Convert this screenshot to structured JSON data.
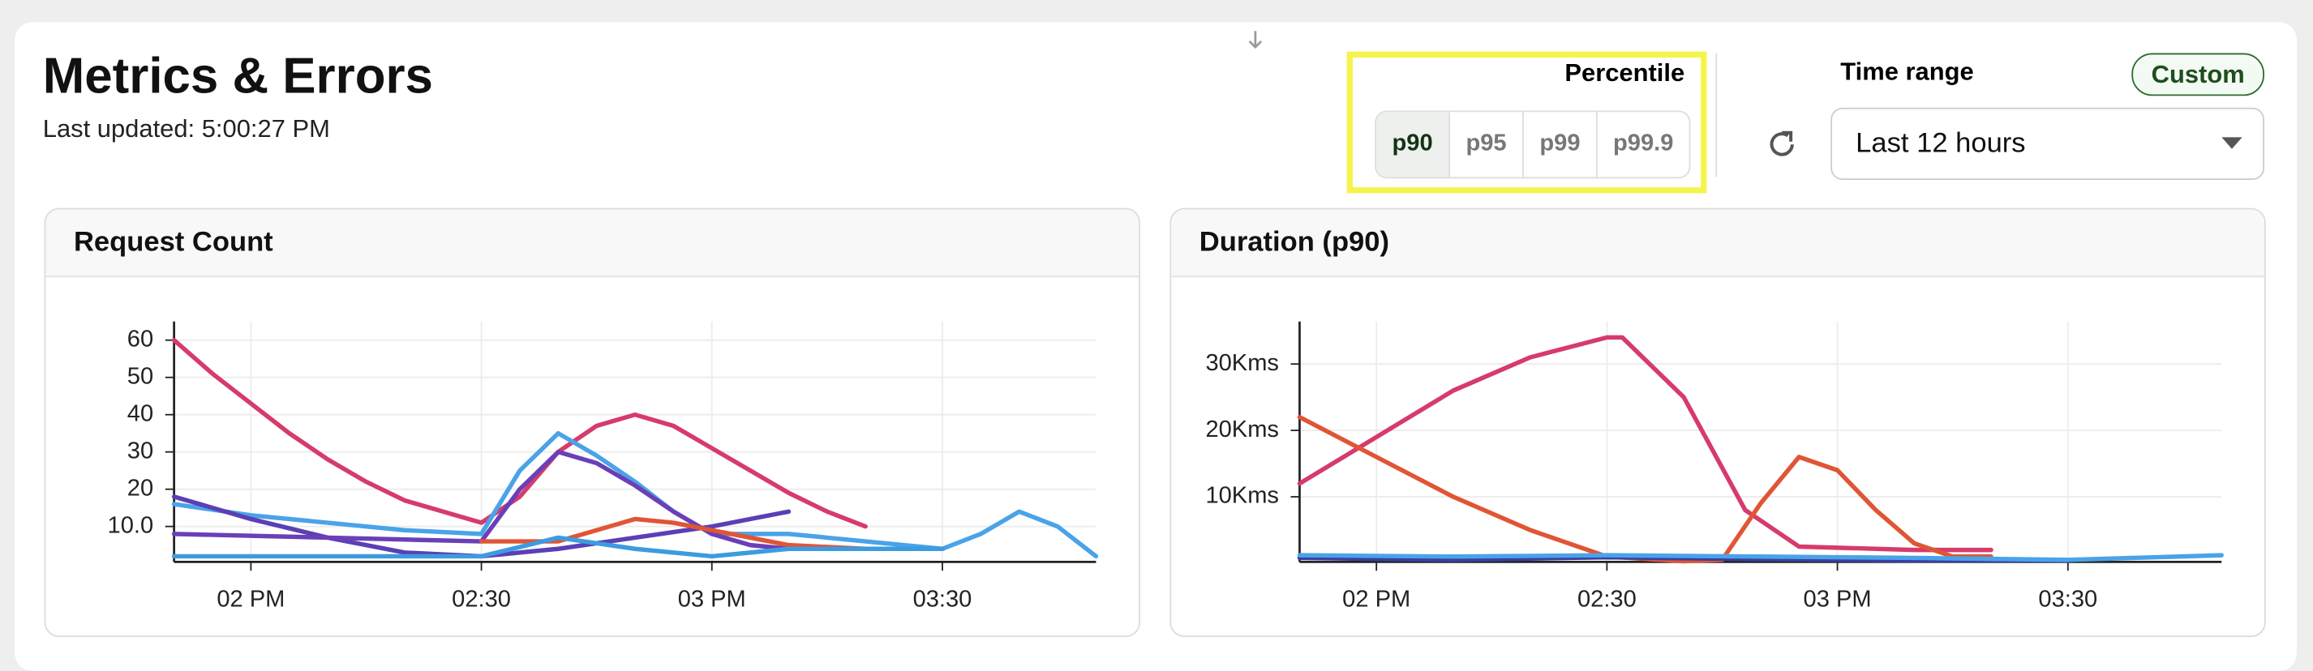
{
  "header": {
    "title": "Metrics & Errors",
    "last_updated": "Last updated: 5:00:27 PM"
  },
  "percentile": {
    "label": "Percentile",
    "options": [
      "p90",
      "p95",
      "p99",
      "p99.9"
    ],
    "selected": "p90"
  },
  "time_range": {
    "label": "Time range",
    "badge": "Custom",
    "value": "Last 12 hours"
  },
  "chart_data": [
    {
      "type": "line",
      "title": "Request Count",
      "grid": true,
      "xlim": [
        830,
        950
      ],
      "xticks": [
        {
          "value": 840,
          "label": "02 PM"
        },
        {
          "value": 870,
          "label": "02:30"
        },
        {
          "value": 900,
          "label": "03 PM"
        },
        {
          "value": 930,
          "label": "03:30"
        }
      ],
      "ylim": [
        0.5,
        65
      ],
      "yticks": [
        {
          "value": 10,
          "label": "10.0"
        },
        20,
        30,
        40,
        50,
        60
      ],
      "series": [
        {
          "color": "#d63b6b",
          "x": [
            830,
            835,
            840,
            845,
            850,
            855,
            860,
            865,
            870,
            875,
            880,
            885,
            890,
            895,
            900,
            905,
            910,
            915,
            920
          ],
          "values": [
            60,
            51,
            43,
            35,
            28,
            22,
            17,
            14,
            11,
            18,
            30,
            37,
            40,
            37,
            31,
            25,
            19,
            14,
            10
          ]
        },
        {
          "color": "#4aa3e8",
          "x": [
            830,
            840,
            850,
            860,
            870,
            875,
            880,
            885,
            890,
            895,
            900,
            910,
            920,
            930,
            935,
            940,
            945,
            950
          ],
          "values": [
            16,
            13,
            11,
            9,
            8,
            25,
            35,
            29,
            22,
            14,
            8,
            8,
            6,
            4,
            8,
            14,
            10,
            2
          ]
        },
        {
          "color": "#5b3fb5",
          "x": [
            830,
            840,
            850,
            860,
            870,
            880,
            890,
            900,
            910
          ],
          "values": [
            18,
            12,
            7,
            3,
            2,
            4,
            7,
            10,
            14
          ]
        },
        {
          "color": "#6a3fb8",
          "x": [
            830,
            850,
            870,
            875,
            880,
            885,
            890,
            895,
            900,
            905,
            910,
            930
          ],
          "values": [
            8,
            7,
            6,
            20,
            30,
            27,
            21,
            14,
            8,
            5,
            4,
            4
          ]
        },
        {
          "color": "#e05535",
          "x": [
            870,
            880,
            890,
            895,
            900,
            910,
            920,
            930
          ],
          "values": [
            6,
            6,
            12,
            11,
            9,
            5,
            4,
            4
          ]
        },
        {
          "color": "#3d9be0",
          "x": [
            830,
            860,
            870,
            880,
            890,
            900,
            910,
            930
          ],
          "values": [
            2,
            2,
            2,
            7,
            4,
            2,
            4,
            4
          ]
        }
      ]
    },
    {
      "type": "line",
      "title": "Duration (p90)",
      "grid": true,
      "xlim": [
        830,
        950
      ],
      "xticks": [
        {
          "value": 840,
          "label": "02 PM"
        },
        {
          "value": 870,
          "label": "02:30"
        },
        {
          "value": 900,
          "label": "03 PM"
        },
        {
          "value": 930,
          "label": "03:30"
        }
      ],
      "ylim": [
        200,
        36400
      ],
      "yticks": [
        {
          "value": 10000,
          "label": "10Kms"
        },
        {
          "value": 20000,
          "label": "20Kms"
        },
        {
          "value": 30000,
          "label": "30Kms"
        }
      ],
      "series": [
        {
          "color": "#d63b6b",
          "x": [
            830,
            840,
            850,
            860,
            870,
            872,
            880,
            888,
            895,
            910,
            920
          ],
          "values": [
            12000,
            19000,
            26000,
            31000,
            34000,
            34000,
            25000,
            8000,
            2500,
            2000,
            2000
          ]
        },
        {
          "color": "#e05535",
          "x": [
            830,
            840,
            850,
            860,
            870,
            880,
            885,
            890,
            895,
            900,
            905,
            910,
            915,
            920
          ],
          "values": [
            22000,
            16000,
            10000,
            5000,
            1000,
            300,
            500,
            9000,
            16000,
            14000,
            8000,
            3000,
            1000,
            1000
          ]
        },
        {
          "color": "#3a3f9e",
          "x": [
            830,
            850,
            870,
            890,
            910,
            930
          ],
          "values": [
            800,
            500,
            900,
            600,
            400,
            400
          ]
        },
        {
          "color": "#4aa3e8",
          "x": [
            830,
            850,
            870,
            890,
            910,
            930,
            950
          ],
          "values": [
            1200,
            1000,
            1200,
            1000,
            800,
            500,
            1200
          ]
        }
      ]
    }
  ]
}
